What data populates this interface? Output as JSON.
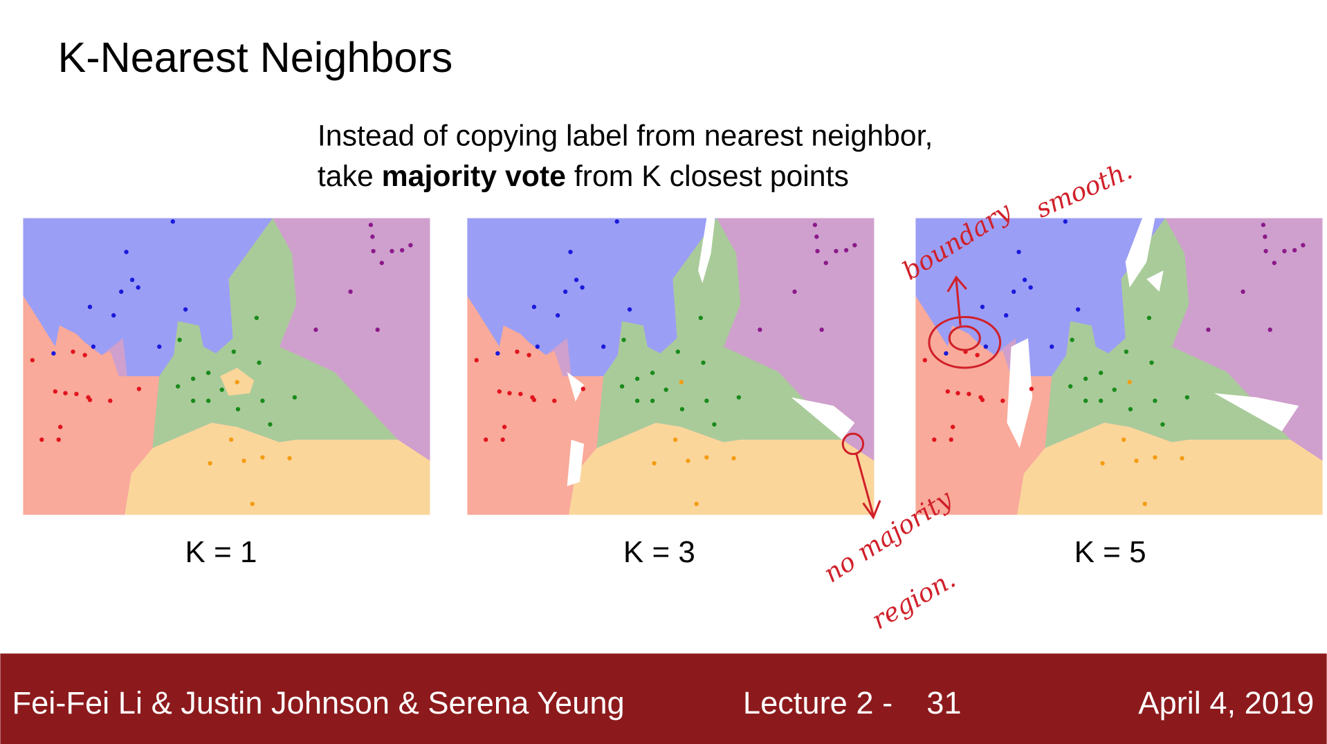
{
  "header": {
    "title": "K-Nearest Neighbors"
  },
  "subtitle": {
    "line1": "Instead of copying label from nearest neighbor,",
    "line2": [
      "take ",
      "majority vote",
      " from K closest points"
    ]
  },
  "panels": [
    {
      "label": "K = 1"
    },
    {
      "label": "K = 3"
    },
    {
      "label": "K = 5"
    }
  ],
  "annotations": {
    "boundary": "boundary",
    "smooth": "smooth.",
    "no_majority": "no majority",
    "region": "region."
  },
  "footer": {
    "authors": "Fei-Fei Li & Justin Johnson & Serena Yeung",
    "lecture": "Lecture 2 -",
    "page": "31",
    "date": "April 4, 2019"
  }
}
